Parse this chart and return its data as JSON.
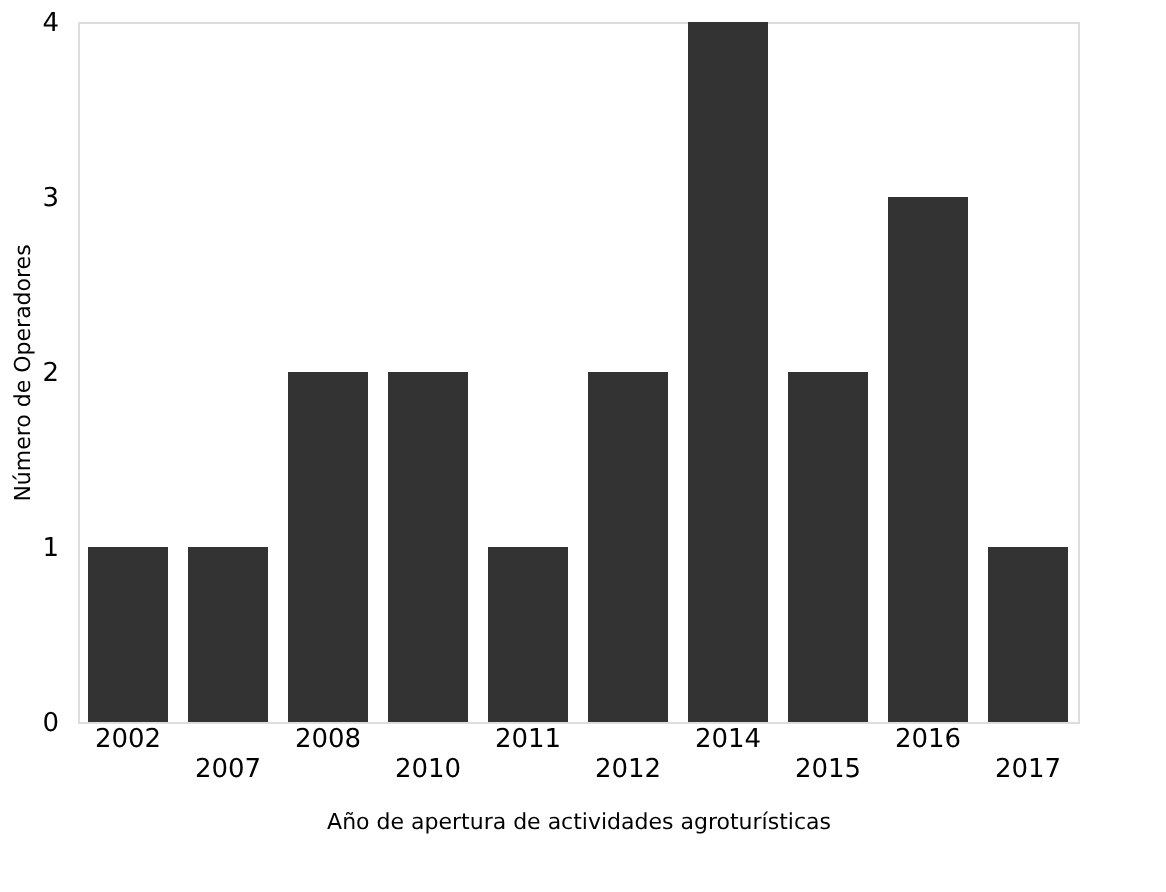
{
  "chart_data": {
    "type": "bar",
    "xlabel": "Año de apertura de actividades agroturísticas",
    "ylabel": "Número de Operadores",
    "categories": [
      "2002",
      "2007",
      "2008",
      "2010",
      "2011",
      "2012",
      "2014",
      "2015",
      "2016",
      "2017"
    ],
    "series": [
      {
        "color": "#333333",
        "values": [
          1,
          1,
          2,
          2,
          1,
          2,
          4,
          2,
          3,
          1
        ]
      }
    ],
    "ylim": [
      0,
      4
    ],
    "yticks": [
      0,
      1,
      2,
      3,
      4
    ],
    "grid": false,
    "legend": false
  }
}
